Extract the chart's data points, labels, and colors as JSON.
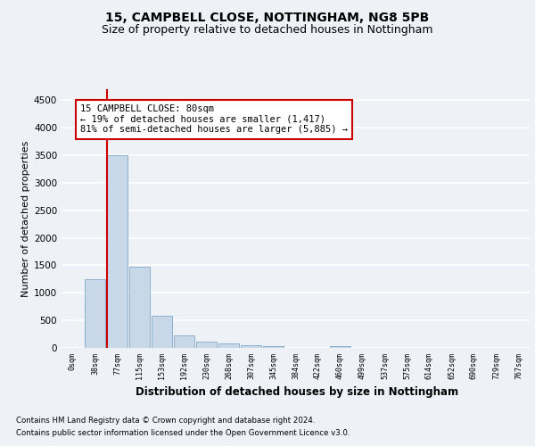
{
  "title1": "15, CAMPBELL CLOSE, NOTTINGHAM, NG8 5PB",
  "title2": "Size of property relative to detached houses in Nottingham",
  "xlabel": "Distribution of detached houses by size in Nottingham",
  "ylabel": "Number of detached properties",
  "footnote1": "Contains HM Land Registry data © Crown copyright and database right 2024.",
  "footnote2": "Contains public sector information licensed under the Open Government Licence v3.0.",
  "bar_labels": [
    "0sqm",
    "38sqm",
    "77sqm",
    "115sqm",
    "153sqm",
    "192sqm",
    "230sqm",
    "268sqm",
    "307sqm",
    "345sqm",
    "384sqm",
    "422sqm",
    "460sqm",
    "499sqm",
    "537sqm",
    "575sqm",
    "614sqm",
    "652sqm",
    "690sqm",
    "729sqm",
    "767sqm"
  ],
  "bar_values": [
    5,
    1250,
    3500,
    1470,
    590,
    225,
    110,
    80,
    50,
    30,
    5,
    3,
    40,
    2,
    0,
    0,
    0,
    0,
    0,
    0,
    0
  ],
  "bar_color": "#c8d8e8",
  "bar_edge_color": "#7fa8c8",
  "vline_color": "#cc0000",
  "vline_pos": 2,
  "annotation_text": "15 CAMPBELL CLOSE: 80sqm\n← 19% of detached houses are smaller (1,417)\n81% of semi-detached houses are larger (5,885) →",
  "ylim": [
    0,
    4700
  ],
  "yticks": [
    0,
    500,
    1000,
    1500,
    2000,
    2500,
    3000,
    3500,
    4000,
    4500
  ],
  "background_color": "#eef2f7",
  "plot_bg_color": "#eef2f7",
  "grid_color": "#ffffff",
  "title1_fontsize": 10,
  "title2_fontsize": 9,
  "xlabel_fontsize": 8.5,
  "ylabel_fontsize": 8
}
